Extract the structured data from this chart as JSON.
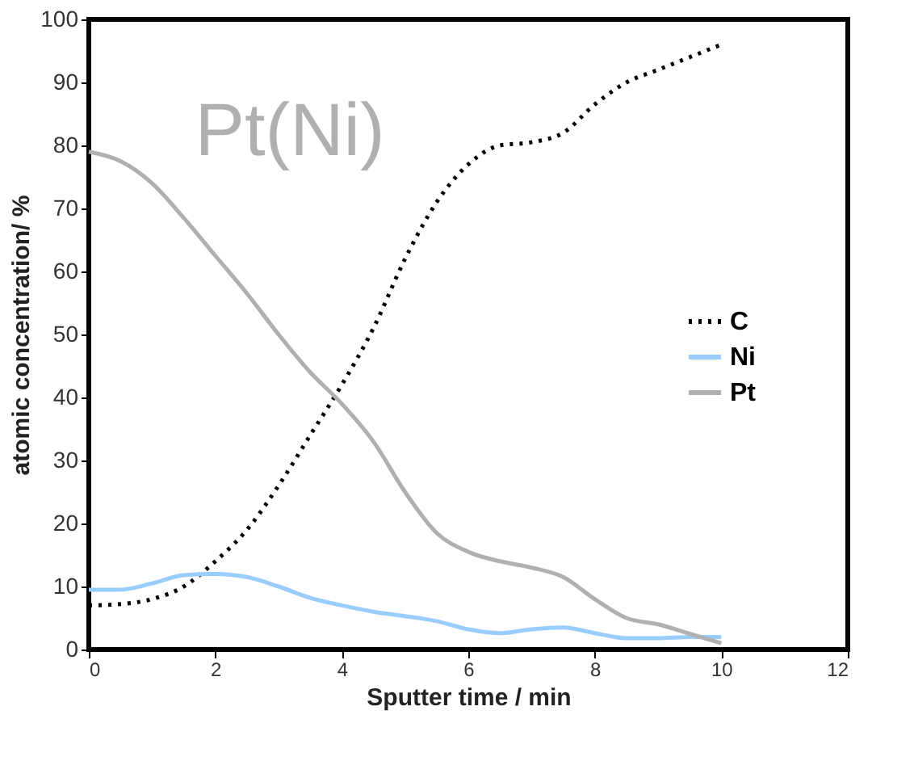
{
  "chart_data": {
    "type": "line",
    "xlabel": "Sputter time / min",
    "ylabel": "atomic concentration/ %",
    "annotations": [
      "Pt(Ni)"
    ],
    "x": [
      0,
      0.5,
      1,
      1.5,
      2,
      2.5,
      3,
      3.5,
      4,
      4.5,
      5,
      5.5,
      6,
      6.5,
      7,
      7.5,
      8,
      8.5,
      9,
      9.5,
      10
    ],
    "series": [
      {
        "name": "C",
        "color": "#000000",
        "line_style": "dotted",
        "values": [
          7,
          7.2,
          8,
          10,
          14,
          19,
          26,
          34,
          42,
          51,
          62,
          71,
          77,
          80,
          80.5,
          82,
          86.5,
          90,
          92,
          94,
          96
        ]
      },
      {
        "name": "Ni",
        "color": "#99ccff",
        "line_style": "solid",
        "values": [
          9.5,
          9.5,
          10.5,
          11.8,
          12,
          11.5,
          10,
          8.2,
          7,
          6,
          5.3,
          4.5,
          3.2,
          2.6,
          3.2,
          3.5,
          2.6,
          1.8,
          1.8,
          2,
          2
        ]
      },
      {
        "name": "Pt",
        "color": "#b0b0b0",
        "line_style": "solid",
        "values": [
          79,
          77.5,
          74,
          68.5,
          62.5,
          56.5,
          50,
          44,
          39,
          33,
          25,
          18.5,
          15.5,
          14,
          13,
          11.5,
          8,
          5,
          4,
          2.5,
          1
        ]
      }
    ],
    "xlim": [
      0,
      12
    ],
    "xticks": [
      0,
      2,
      4,
      6,
      8,
      10,
      12
    ],
    "ylim": [
      0,
      100
    ],
    "yticks": [
      0,
      10,
      20,
      30,
      40,
      50,
      60,
      70,
      80,
      90,
      100
    ],
    "grid": false,
    "legend": "right",
    "marker": "none"
  }
}
